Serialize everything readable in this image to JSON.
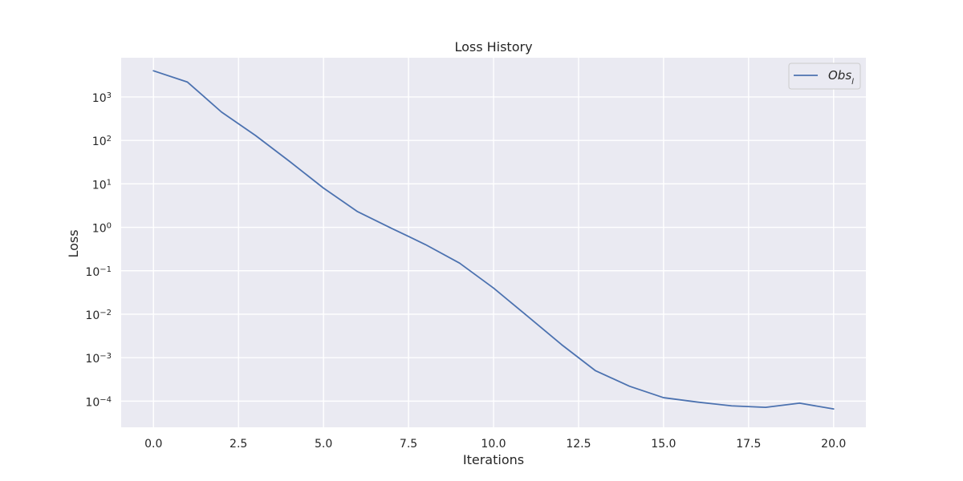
{
  "chart_data": {
    "type": "line",
    "title": "Loss History",
    "xlabel": "Iterations",
    "ylabel": "Loss",
    "yscale": "log",
    "xlim": [
      -0.95,
      20.95
    ],
    "ylim": [
      2.5e-05,
      8000
    ],
    "xticks": [
      0.0,
      2.5,
      5.0,
      7.5,
      10.0,
      12.5,
      15.0,
      17.5,
      20.0
    ],
    "xtick_labels": [
      "0.0",
      "2.5",
      "5.0",
      "7.5",
      "10.0",
      "12.5",
      "15.0",
      "17.5",
      "20.0"
    ],
    "yticks": [
      {
        "value": 1000,
        "base": "10",
        "exp": "3"
      },
      {
        "value": 100,
        "base": "10",
        "exp": "2"
      },
      {
        "value": 10,
        "base": "10",
        "exp": "1"
      },
      {
        "value": 1,
        "base": "10",
        "exp": "0"
      },
      {
        "value": 0.1,
        "base": "10",
        "exp": "−1"
      },
      {
        "value": 0.01,
        "base": "10",
        "exp": "−2"
      },
      {
        "value": 0.001,
        "base": "10",
        "exp": "−3"
      },
      {
        "value": 0.0001,
        "base": "10",
        "exp": "−4"
      }
    ],
    "grid": true,
    "legend_position": "top-right",
    "series": [
      {
        "name": "Obs_l",
        "legend_base": "Obs",
        "legend_sub": "l",
        "color": "#4c72b0",
        "x": [
          0,
          1,
          2,
          3,
          4,
          5,
          6,
          7,
          8,
          9,
          10,
          11,
          12,
          13,
          14,
          15,
          16,
          17,
          18,
          19,
          20
        ],
        "y": [
          4000,
          2200,
          450,
          130,
          33,
          8,
          2.3,
          0.95,
          0.4,
          0.15,
          0.04,
          0.009,
          0.002,
          0.0005,
          0.00022,
          0.00012,
          9.5e-05,
          7.8e-05,
          7.2e-05,
          9e-05,
          6.6e-05
        ]
      }
    ]
  }
}
